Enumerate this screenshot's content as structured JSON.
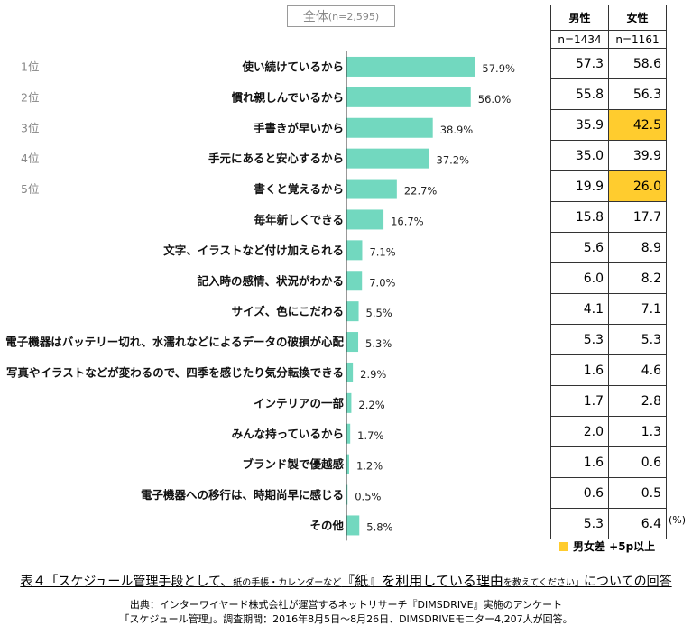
{
  "header": {
    "label": "全体",
    "n": "(n=2,595)"
  },
  "table": {
    "col_male": "男性",
    "col_female": "女性",
    "n_male": "n=1434",
    "n_female": "n=1161",
    "highlight_color": "#ffcc2e"
  },
  "unit": "(%)",
  "legend": {
    "label": "男女差 +5p以上",
    "color": "#ffcc2e"
  },
  "caption": {
    "part1": "表４「スケジュール管理手段として、",
    "part2": "紙の手帳・カレンダーなど",
    "part3": "『紙』を利用している理由",
    "part4": "を教えてください」",
    "part5": "についての回答"
  },
  "source": {
    "line1": "出典：インターワイヤード株式会社が運営するネットリサーチ『DIMSDRIVE』実施のアンケート",
    "line2": "「スケジュール管理」。調査期間：2016年8月5日～8月26日、DIMSDRIVEモニター4,207人が回答。"
  },
  "chart_data": {
    "type": "bar",
    "orientation": "horizontal",
    "bar_color": "#72d8bf",
    "ranks": [
      "1位",
      "2位",
      "3位",
      "4位",
      "5位"
    ],
    "categories": [
      "使い続けているから",
      "慣れ親しんでいるから",
      "手書きが早いから",
      "手元にあると安心するから",
      "書くと覚えるから",
      "毎年新しくできる",
      "文字、イラストなど付け加えられる",
      "記入時の感情、状況がわかる",
      "サイズ、色にこだわる",
      "電子機器はバッテリー切れ、水濡れなどによるデータの破損が心配",
      "写真やイラストなどが変わるので、四季を感じたり気分転換できる",
      "インテリアの一部",
      "みんな持っているから",
      "ブランド製で優越感",
      "電子機器への移行は、時期尚早に感じる",
      "その他"
    ],
    "values": [
      57.9,
      56.0,
      38.9,
      37.2,
      22.7,
      16.7,
      7.1,
      7.0,
      5.5,
      5.3,
      2.9,
      2.2,
      1.7,
      1.2,
      0.5,
      5.8
    ],
    "value_labels": [
      "57.9%",
      "56.0%",
      "38.9%",
      "37.2%",
      "22.7%",
      "16.7%",
      "7.1%",
      "7.0%",
      "5.5%",
      "5.3%",
      "2.9%",
      "2.2%",
      "1.7%",
      "1.2%",
      "0.5%",
      "5.8%"
    ],
    "male": [
      "57.3",
      "55.8",
      "35.9",
      "35.0",
      "19.9",
      "15.8",
      "5.6",
      "6.0",
      "4.1",
      "5.3",
      "1.6",
      "1.7",
      "2.0",
      "1.6",
      "0.6",
      "5.3"
    ],
    "female": [
      "58.6",
      "56.3",
      "42.5",
      "39.9",
      "26.0",
      "17.7",
      "8.9",
      "8.2",
      "7.1",
      "5.3",
      "4.6",
      "2.8",
      "1.3",
      "0.6",
      "0.5",
      "6.4"
    ],
    "female_highlight": [
      2,
      4
    ]
  }
}
